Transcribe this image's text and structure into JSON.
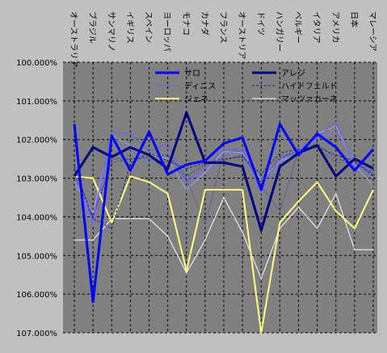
{
  "chart_data": {
    "type": "line",
    "title": "",
    "xlabel": "",
    "ylabel": "",
    "y_reversed": true,
    "ylim": [
      100,
      107
    ],
    "y_ticks": [
      "100.000%",
      "101.000%",
      "102.000%",
      "103.000%",
      "104.000%",
      "105.000%",
      "106.000%",
      "107.000%"
    ],
    "x_tick_position": "top",
    "grid": "dashed horizontal and vertical",
    "legend_position": "top-right inside plot",
    "categories": [
      "オーストラリア",
      "ブラジル",
      "サンマリノ",
      "イギリス",
      "スペイン",
      "ヨーロッパ",
      "モナコ",
      "カナダ",
      "フランス",
      "オーストリア",
      "ドイツ",
      "ハンガリー",
      "ベルギー",
      "イタリア",
      "アメリカ",
      "日本",
      "マレーシア"
    ],
    "series": [
      {
        "name": "サロ",
        "color": "#0000ff",
        "width": 3,
        "dash": "",
        "values": [
          101.6,
          106.2,
          101.9,
          102.8,
          101.8,
          102.9,
          102.65,
          102.55,
          102.1,
          101.95,
          103.3,
          101.6,
          102.4,
          101.85,
          102.2,
          102.8,
          102.25
        ]
      },
      {
        "name": "アレジ",
        "color": "#000080",
        "width": 3,
        "dash": "",
        "values": [
          102.95,
          102.2,
          102.45,
          102.2,
          102.4,
          102.75,
          101.3,
          102.6,
          102.6,
          102.7,
          104.35,
          102.7,
          102.35,
          102.15,
          102.95,
          102.5,
          102.75
        ]
      },
      {
        "name": "ディニス",
        "color": "#6060ff",
        "width": 1,
        "dash": "",
        "values": [
          102.9,
          104.1,
          101.8,
          101.85,
          102.3,
          102.1,
          103.1,
          102.7,
          102.25,
          102.25,
          103.2,
          102.5,
          102.3,
          101.95,
          101.55,
          102.7,
          102.8
        ]
      },
      {
        "name": "ハイドフェルド",
        "color": "#202090",
        "width": 1,
        "dash": "3,2",
        "values": [
          102.7,
          104.05,
          104.3,
          102.6,
          102.35,
          102.55,
          102.75,
          102.6,
          102.5,
          102.45,
          102.9,
          102.35,
          102.25,
          102.2,
          102.4,
          102.55,
          102.95
        ]
      },
      {
        "name": "ジェネ",
        "color": "#ffff80",
        "width": 2,
        "dash": "",
        "values": [
          102.95,
          103.0,
          104.15,
          102.95,
          103.1,
          103.4,
          105.4,
          103.3,
          103.3,
          103.3,
          107.0,
          104.15,
          103.6,
          103.1,
          103.85,
          104.3,
          103.3
        ]
      },
      {
        "name": "マッツァカーネ",
        "color": "#ffffff",
        "width": 1,
        "dash": "",
        "values": [
          104.6,
          104.6,
          104.05,
          104.05,
          104.05,
          104.5,
          105.45,
          104.6,
          103.5,
          104.4,
          105.6,
          104.3,
          103.75,
          104.3,
          103.4,
          104.85,
          104.85
        ]
      },
      {
        "name": "",
        "color": "#a0a0ff",
        "width": 1,
        "dash": "",
        "values": [
          103.1,
          103.9,
          101.9,
          102.15,
          102.4,
          102.5,
          103.3,
          102.85,
          102.3,
          102.35,
          103.05,
          102.55,
          102.4,
          101.85,
          101.65,
          102.65,
          103.2
        ]
      },
      {
        "name": "",
        "color": "#303070",
        "width": 1,
        "dash": "2,2",
        "values": [
          102.8,
          104.0,
          102.6,
          102.5,
          102.45,
          102.4,
          102.95,
          102.65,
          102.55,
          102.4,
          103.1,
          102.45,
          102.3,
          102.1,
          102.5,
          102.6,
          102.85
        ]
      },
      {
        "name": "",
        "color": "#7070ff",
        "width": 1,
        "dash": "",
        "values": [
          102.9,
          104.2,
          102.0,
          102.3,
          102.6,
          102.3,
          103.0,
          102.9,
          102.4,
          102.3,
          103.4,
          102.6,
          102.2,
          102.0,
          101.8,
          102.5,
          103.0
        ]
      },
      {
        "name": "",
        "color": "#606090",
        "width": 1,
        "dash": "",
        "values": [
          102.9,
          104.0,
          102.5,
          102.5,
          102.5,
          102.6,
          103.0,
          104.2,
          102.3,
          102.3,
          103.2,
          103.85,
          102.3,
          102.2,
          102.6,
          102.6,
          102.9
        ]
      }
    ]
  }
}
